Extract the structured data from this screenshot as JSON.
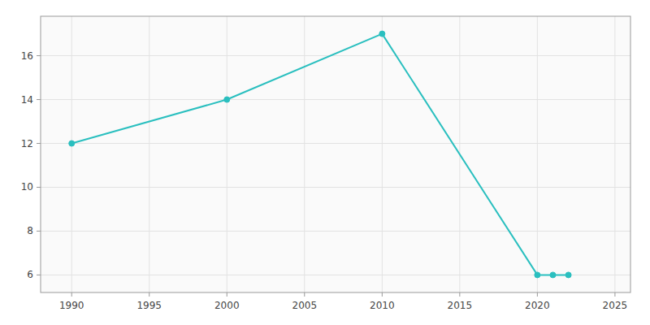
{
  "chart_data": {
    "type": "line",
    "x": [
      1990,
      2000,
      2010,
      2020,
      2021,
      2022
    ],
    "values": [
      12,
      14,
      17,
      6,
      6,
      6
    ],
    "color": "#2abfbf",
    "marker": "circle",
    "xlim": [
      1988,
      2026
    ],
    "ylim": [
      5.2,
      17.8
    ],
    "xticks": [
      1990,
      1995,
      2000,
      2005,
      2010,
      2015,
      2020,
      2025
    ],
    "yticks": [
      6,
      8,
      10,
      12,
      14,
      16
    ],
    "grid": true
  }
}
